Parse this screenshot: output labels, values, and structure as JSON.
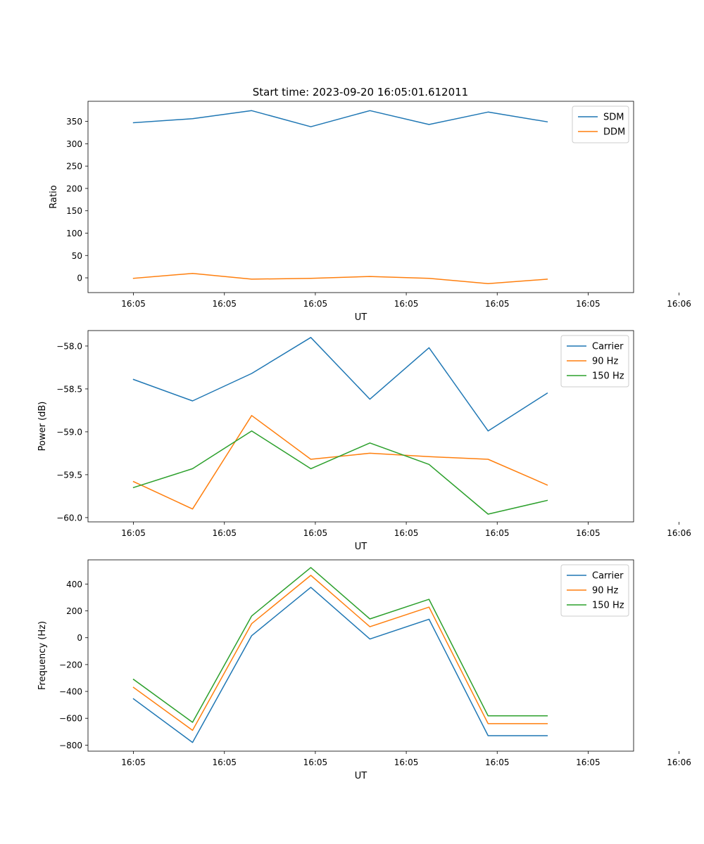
{
  "figure_title": "Start time: 2023-09-20 16:05:01.612011",
  "chart_data": [
    {
      "type": "line",
      "title": "Start time: 2023-09-20 16:05:01.612011",
      "xlabel": "UT",
      "ylabel": "Ratio",
      "x_tick_labels": [
        "16:05",
        "16:05",
        "16:05",
        "16:05",
        "16:05",
        "16:05",
        "16:06"
      ],
      "x_range": [
        -0.5,
        5.5
      ],
      "x": [
        0,
        0.65,
        1.3,
        1.95,
        2.6,
        3.25,
        3.9,
        4.55
      ],
      "ylim": [
        -33,
        395
      ],
      "yticks": [
        0,
        50,
        100,
        150,
        200,
        250,
        300,
        350
      ],
      "legend_position": "upper-right",
      "series": [
        {
          "name": "SDM",
          "color": "#1f77b4",
          "values": [
            347,
            356,
            374,
            338,
            374,
            343,
            371,
            349
          ]
        },
        {
          "name": "DDM",
          "color": "#ff7f0e",
          "values": [
            -1,
            10,
            -3,
            -1,
            3,
            -1,
            -13,
            -3
          ]
        }
      ]
    },
    {
      "type": "line",
      "title": "",
      "xlabel": "UT",
      "ylabel": "Power (dB)",
      "x_tick_labels": [
        "16:05",
        "16:05",
        "16:05",
        "16:05",
        "16:05",
        "16:05",
        "16:06"
      ],
      "x_range": [
        -0.5,
        5.5
      ],
      "x": [
        0,
        0.65,
        1.3,
        1.95,
        2.6,
        3.25,
        3.9,
        4.55
      ],
      "ylim": [
        -60.05,
        -57.82
      ],
      "yticks": [
        -60.0,
        -59.5,
        -59.0,
        -58.5,
        -58.0
      ],
      "ytick_labels": [
        "−60.0",
        "−59.5",
        "−59.0",
        "−58.5",
        "−58.0"
      ],
      "legend_position": "upper-right",
      "series": [
        {
          "name": "Carrier",
          "color": "#1f77b4",
          "values": [
            -58.39,
            -58.64,
            -58.32,
            -57.9,
            -58.62,
            -58.02,
            -58.99,
            -58.55
          ]
        },
        {
          "name": "90 Hz",
          "color": "#ff7f0e",
          "values": [
            -59.58,
            -59.9,
            -58.81,
            -59.32,
            -59.25,
            -59.29,
            -59.32,
            -59.62
          ]
        },
        {
          "name": "150 Hz",
          "color": "#2ca02c",
          "values": [
            -59.65,
            -59.43,
            -58.99,
            -59.43,
            -59.13,
            -59.38,
            -59.96,
            -59.8
          ]
        }
      ]
    },
    {
      "type": "line",
      "title": "",
      "xlabel": "UT",
      "ylabel": "Frequency (Hz)",
      "x_tick_labels": [
        "16:05",
        "16:05",
        "16:05",
        "16:05",
        "16:05",
        "16:05",
        "16:06"
      ],
      "x_range": [
        -0.5,
        5.5
      ],
      "x": [
        0,
        0.65,
        1.3,
        1.95,
        2.6,
        3.25,
        3.9,
        4.55
      ],
      "ylim": [
        -845,
        580
      ],
      "yticks": [
        -800,
        -600,
        -400,
        -200,
        0,
        200,
        400
      ],
      "ytick_labels": [
        "−800",
        "−600",
        "−400",
        "−200",
        "0",
        "200",
        "400"
      ],
      "legend_position": "upper-right",
      "series": [
        {
          "name": "Carrier",
          "color": "#1f77b4",
          "values": [
            -455,
            -780,
            15,
            375,
            -10,
            138,
            -730,
            -730
          ]
        },
        {
          "name": "90 Hz",
          "color": "#ff7f0e",
          "values": [
            -370,
            -690,
            105,
            465,
            82,
            228,
            -640,
            -640
          ]
        },
        {
          "name": "150 Hz",
          "color": "#2ca02c",
          "values": [
            -310,
            -630,
            162,
            523,
            140,
            286,
            -582,
            -582
          ]
        }
      ]
    }
  ]
}
